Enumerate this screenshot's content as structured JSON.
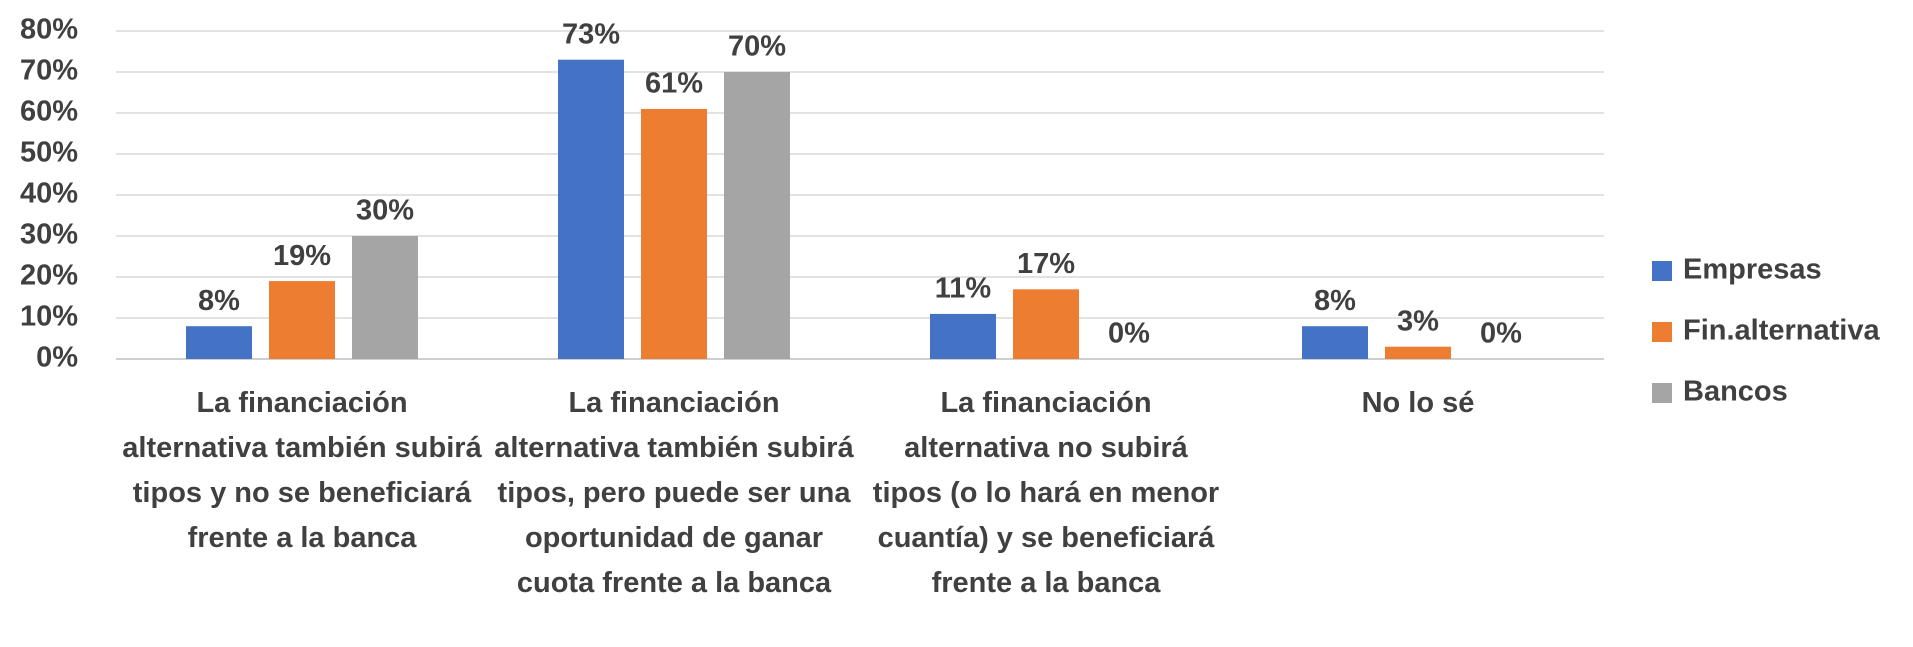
{
  "chart_data": {
    "type": "bar",
    "categories": [
      "La financiación alternativa también subirá tipos y no se beneficiará frente a la banca",
      "La financiación alternativa también subirá tipos, pero puede ser una oportunidad de ganar cuota frente a la banca",
      "La financiación alternativa no subirá tipos (o lo hará en menor cuantía) y se beneficiará frente a la banca",
      "No lo sé"
    ],
    "series": [
      {
        "name": "Empresas",
        "color": "#4472c4",
        "values": [
          8,
          73,
          11,
          8
        ],
        "value_labels": [
          "8%",
          "73%",
          "11%",
          "8%"
        ]
      },
      {
        "name": "Fin.alternativa",
        "color": "#ed7d31",
        "values": [
          19,
          61,
          17,
          3
        ],
        "value_labels": [
          "19%",
          "61%",
          "17%",
          "3%"
        ]
      },
      {
        "name": "Bancos",
        "color": "#a5a5a5",
        "values": [
          30,
          70,
          0,
          0
        ],
        "value_labels": [
          "30%",
          "70%",
          "0%",
          "0%"
        ]
      }
    ],
    "ylim": [
      0,
      80
    ],
    "yticks": [
      {
        "value": 0,
        "label": "0%"
      },
      {
        "value": 10,
        "label": "10%"
      },
      {
        "value": 20,
        "label": "20%"
      },
      {
        "value": 30,
        "label": "30%"
      },
      {
        "value": 40,
        "label": "40%"
      },
      {
        "value": 50,
        "label": "50%"
      },
      {
        "value": 60,
        "label": "60%"
      },
      {
        "value": 70,
        "label": "70%"
      },
      {
        "value": 80,
        "label": "80%"
      }
    ],
    "grid": true,
    "legend": "right"
  }
}
